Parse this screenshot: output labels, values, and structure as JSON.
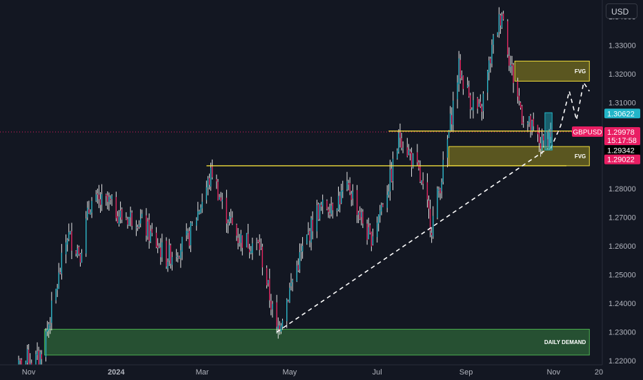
{
  "toolbar": {
    "currency_label": "USD"
  },
  "price_labels": {
    "symbol": "GBPUSD",
    "last": "1.29978",
    "countdown": "15:17:58",
    "high_mark": "1.30622",
    "mid_mark": "1.29342",
    "low_mark": "1.29022"
  },
  "zones": {
    "fvg_upper": "FVG",
    "fvg_lower": "FVG",
    "daily_demand": "DAILY DEMAND"
  },
  "colors": {
    "background": "#131722",
    "bull": "#26a69a",
    "bear": "#ef5350",
    "bull_candle": "#2ab4c6",
    "bear_candle": "#e0245e",
    "level_line": "#f5e03c",
    "fvg_fill": "#6d6620",
    "demand_fill": "#2a5a35",
    "demand_border": "#4caf50",
    "symbol_badge": "#e91e63",
    "cyan_badge": "#22b5c8"
  },
  "chart_data": {
    "type": "candlestick",
    "title": "",
    "symbol": "GBPUSD",
    "x_tick_labels": [
      "Nov",
      "2024",
      "Mar",
      "May",
      "Jul",
      "Sep",
      "Nov",
      "20"
    ],
    "y_tick_labels": [
      "1.34000",
      "1.33000",
      "1.32000",
      "1.31000",
      "1.30000",
      "1.29000",
      "1.28000",
      "1.27000",
      "1.26000",
      "1.25000",
      "1.24000",
      "1.23000",
      "1.22000"
    ],
    "ylim": [
      1.2186,
      1.3458
    ],
    "grid": false,
    "anchors": [
      {
        "date": "2023-10-22",
        "close": 1.216
      },
      {
        "date": "2023-11-01",
        "close": 1.221
      },
      {
        "date": "2023-11-08",
        "close": 1.22
      },
      {
        "date": "2023-11-14",
        "close": 1.231
      },
      {
        "date": "2023-11-20",
        "close": 1.244
      },
      {
        "date": "2023-11-28",
        "close": 1.264
      },
      {
        "date": "2023-12-07",
        "close": 1.258
      },
      {
        "date": "2023-12-14",
        "close": 1.275
      },
      {
        "date": "2023-12-27",
        "close": 1.275
      },
      {
        "date": "2024-01-05",
        "close": 1.27
      },
      {
        "date": "2024-01-16",
        "close": 1.27
      },
      {
        "date": "2024-02-05",
        "close": 1.256
      },
      {
        "date": "2024-02-20",
        "close": 1.262
      },
      {
        "date": "2024-03-08",
        "close": 1.286
      },
      {
        "date": "2024-03-15",
        "close": 1.274
      },
      {
        "date": "2024-03-26",
        "close": 1.263
      },
      {
        "date": "2024-04-10",
        "close": 1.26
      },
      {
        "date": "2024-04-22",
        "close": 1.23
      },
      {
        "date": "2024-05-06",
        "close": 1.253
      },
      {
        "date": "2024-05-20",
        "close": 1.272
      },
      {
        "date": "2024-06-03",
        "close": 1.276
      },
      {
        "date": "2024-06-12",
        "close": 1.28
      },
      {
        "date": "2024-06-26",
        "close": 1.262
      },
      {
        "date": "2024-07-10",
        "close": 1.283
      },
      {
        "date": "2024-07-17",
        "close": 1.299
      },
      {
        "date": "2024-07-30",
        "close": 1.285
      },
      {
        "date": "2024-08-08",
        "close": 1.267
      },
      {
        "date": "2024-08-16",
        "close": 1.287
      },
      {
        "date": "2024-08-27",
        "close": 1.322
      },
      {
        "date": "2024-09-04",
        "close": 1.311
      },
      {
        "date": "2024-09-11",
        "close": 1.306
      },
      {
        "date": "2024-09-20",
        "close": 1.331
      },
      {
        "date": "2024-09-26",
        "close": 1.342
      },
      {
        "date": "2024-10-02",
        "close": 1.323
      },
      {
        "date": "2024-10-10",
        "close": 1.306
      },
      {
        "date": "2024-10-24",
        "close": 1.295
      },
      {
        "date": "2024-10-30",
        "close": 1.2998
      }
    ],
    "levels": [
      {
        "price": 1.3001,
        "from": "2024-07-09",
        "to": "2024-11-26"
      },
      {
        "price": 1.288,
        "from": "2024-03-04",
        "to": "2024-11-10"
      }
    ],
    "zones": [
      {
        "label": "FVG",
        "top": 1.3245,
        "bottom": 1.3175,
        "from": "2024-10-05",
        "to": "2024-11-26"
      },
      {
        "label": "FVG",
        "top": 1.2947,
        "bottom": 1.288,
        "from": "2024-08-20",
        "to": "2024-11-26"
      },
      {
        "label": "DAILY DEMAND",
        "top": 1.231,
        "bottom": 1.222,
        "from": "2023-11-12",
        "to": "2024-11-26"
      }
    ],
    "trendline": {
      "from_date": "2024-04-22",
      "from_price": 1.23,
      "to_date": "2024-10-28",
      "to_price": 1.294
    },
    "projection": [
      {
        "date": "2024-10-30",
        "price": 1.294
      },
      {
        "date": "2024-11-06",
        "price": 1.302
      },
      {
        "date": "2024-11-12",
        "price": 1.314
      },
      {
        "date": "2024-11-17",
        "price": 1.304
      },
      {
        "date": "2024-11-22",
        "price": 1.317
      },
      {
        "date": "2024-11-26",
        "price": 1.314
      }
    ],
    "position_box": {
      "from": "2024-10-26",
      "to": "2024-10-31",
      "top": 1.3065,
      "bottom": 1.2935
    }
  }
}
